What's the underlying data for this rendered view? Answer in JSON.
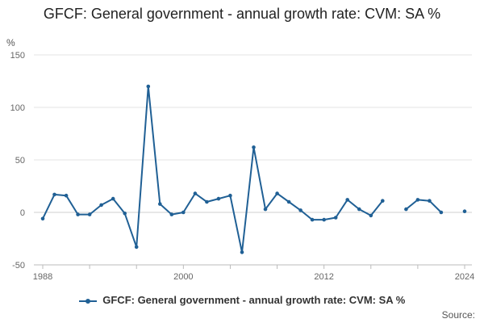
{
  "chart_data": {
    "type": "line",
    "title": "GFCF: General government - annual growth rate: CVM: SA %",
    "ylabel": "%",
    "xlabel": "",
    "ylim": [
      -50,
      150
    ],
    "yticks": [
      150,
      100,
      50,
      0,
      -50
    ],
    "xlim": [
      1988,
      2024
    ],
    "xticks": [
      1988,
      2000,
      2012,
      2024
    ],
    "series": [
      {
        "name": "GFCF: General government - annual growth rate: CVM: SA %",
        "color": "#206095",
        "points": [
          [
            1988,
            -6
          ],
          [
            1989,
            17
          ],
          [
            1990,
            16
          ],
          [
            1991,
            -2
          ],
          [
            1992,
            -2
          ],
          [
            1993,
            7
          ],
          [
            1994,
            13
          ],
          [
            1995,
            -1
          ],
          [
            1996,
            -33
          ],
          [
            1997,
            120
          ],
          [
            1998,
            8
          ],
          [
            1999,
            -2
          ],
          [
            2000,
            0
          ],
          [
            2001,
            18
          ],
          [
            2002,
            10
          ],
          [
            2003,
            13
          ],
          [
            2004,
            16
          ],
          [
            2005,
            -38
          ],
          [
            2006,
            62
          ],
          [
            2007,
            3
          ],
          [
            2008,
            18
          ],
          [
            2009,
            10
          ],
          [
            2010,
            2
          ],
          [
            2011,
            -7
          ],
          [
            2012,
            -7
          ],
          [
            2013,
            -5
          ],
          [
            2014,
            12
          ],
          [
            2015,
            3
          ],
          [
            2016,
            -3
          ],
          [
            2017,
            11
          ],
          [
            2018,
            null
          ],
          [
            2019,
            3
          ],
          [
            2020,
            12
          ],
          [
            2021,
            11
          ],
          [
            2022,
            0
          ],
          [
            2023,
            null
          ],
          [
            2024,
            1
          ]
        ]
      }
    ]
  },
  "legend": {
    "label": "GFCF: General government - annual growth rate: CVM: SA %"
  },
  "source": {
    "label": "Source:"
  }
}
